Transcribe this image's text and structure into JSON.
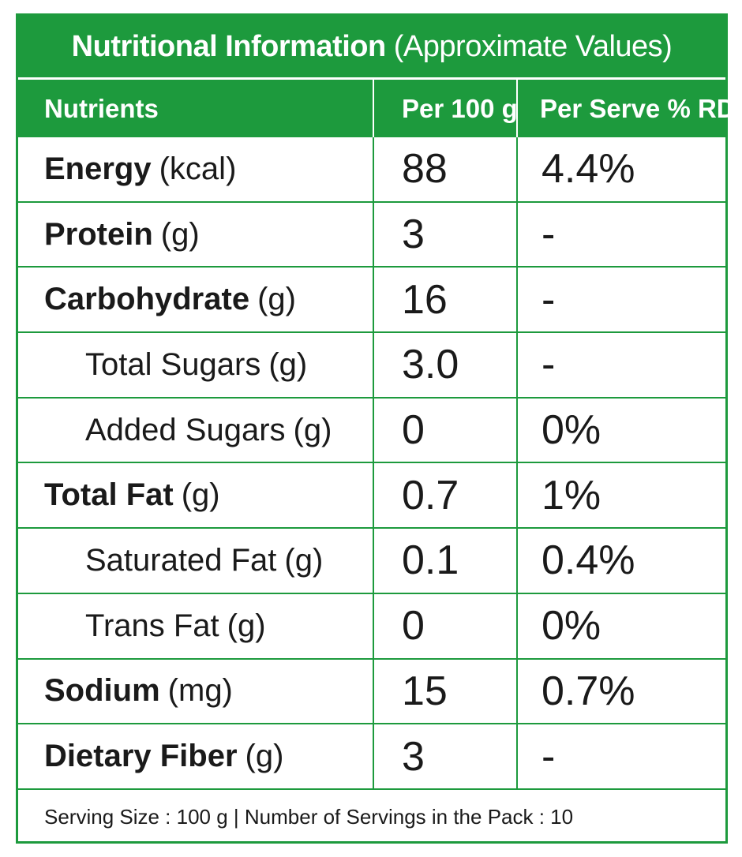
{
  "table": {
    "title_bold": "Nutritional Information",
    "title_light": "(Approximate Values)",
    "headers": {
      "nutrients": "Nutrients",
      "per_100g": "Per 100 g",
      "per_serve_rda": "Per Serve % RDA"
    },
    "rows": [
      {
        "name": "Energy",
        "unit": "(kcal)",
        "per_100g": "88",
        "rda": "4.4%"
      },
      {
        "name": "Protein",
        "unit": "(g)",
        "per_100g": "3",
        "rda": "-"
      },
      {
        "name": "Carbohydrate",
        "unit": "(g)",
        "per_100g": "16",
        "rda": "-"
      },
      {
        "name": "Total Sugars",
        "unit": "(g)",
        "per_100g": "3.0",
        "rda": "-"
      },
      {
        "name": "Added Sugars",
        "unit": "(g)",
        "per_100g": "0",
        "rda": "0%"
      },
      {
        "name": "Total Fat",
        "unit": "(g)",
        "per_100g": "0.7",
        "rda": "1%"
      },
      {
        "name": "Saturated Fat",
        "unit": "(g)",
        "per_100g": "0.1",
        "rda": "0.4%"
      },
      {
        "name": "Trans Fat",
        "unit": "(g)",
        "per_100g": "0",
        "rda": "0%"
      },
      {
        "name": "Sodium",
        "unit": "(mg)",
        "per_100g": "15",
        "rda": "0.7%"
      },
      {
        "name": "Dietary Fiber",
        "unit": "(g)",
        "per_100g": "3",
        "rda": "-"
      }
    ],
    "footer": "Serving Size : 100 g | Number of Servings in the Pack : 10"
  },
  "colors": {
    "accent_green": "#1d9a3d",
    "text": "#1a1a1a",
    "background": "#ffffff"
  }
}
